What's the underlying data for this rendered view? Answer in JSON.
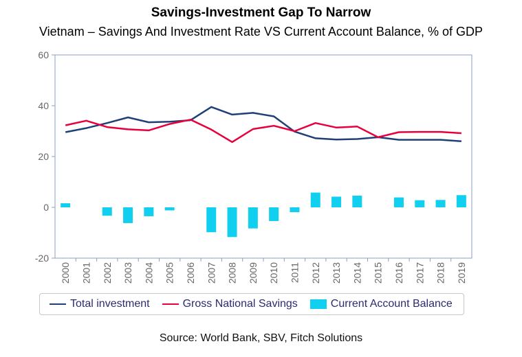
{
  "title": "Savings-Investment Gap To Narrow",
  "subtitle": "Vietnam – Savings And Investment Rate VS Current Account Balance, % of GDP",
  "source": "Source: World Bank, SBV, Fitch Solutions",
  "colors": {
    "investment": "#1f3f78",
    "savings": "#e8003d",
    "current_account": "#11cfee",
    "axis": "#8aa0c0",
    "tick_text": "#666666"
  },
  "chart_data": {
    "type": "line",
    "categories": [
      "2000",
      "2001",
      "2002",
      "2003",
      "2004",
      "2005",
      "2006",
      "2007",
      "2008",
      "2009",
      "2010",
      "2011",
      "2012",
      "2013",
      "2014",
      "2015",
      "2016",
      "2017",
      "2018",
      "2019"
    ],
    "ylim": [
      -20,
      60
    ],
    "yticks": [
      "-20",
      "0",
      "20",
      "40",
      "60"
    ],
    "grid": false,
    "legend_position": "bottom",
    "series": [
      {
        "name": "Total investment",
        "type": "line",
        "values": [
          29.6,
          31.2,
          33.2,
          35.4,
          33.5,
          33.7,
          34.3,
          39.5,
          36.5,
          37.2,
          35.8,
          29.8,
          27.2,
          26.7,
          26.9,
          27.6,
          26.6,
          26.6,
          26.6,
          26.0
        ]
      },
      {
        "name": "Gross National Savings",
        "type": "line",
        "values": [
          32.3,
          34.1,
          31.6,
          30.7,
          30.3,
          32.8,
          34.5,
          30.6,
          25.7,
          30.8,
          32.1,
          30.0,
          33.2,
          31.4,
          31.8,
          27.6,
          29.6,
          29.7,
          29.7,
          29.2
        ]
      },
      {
        "name": "Current Account Balance",
        "type": "bar",
        "values": [
          1.6,
          0,
          -3.3,
          -6.2,
          -3.5,
          -1.2,
          0,
          -9.8,
          -11.7,
          -8.3,
          -5.4,
          -1.9,
          5.8,
          4.2,
          4.6,
          0,
          3.9,
          2.8,
          2.9,
          4.8
        ]
      }
    ]
  }
}
